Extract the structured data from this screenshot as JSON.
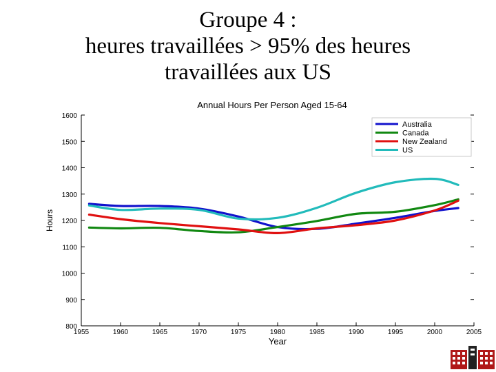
{
  "slide": {
    "title_lines": [
      "Groupe 4 :",
      "heures travaillées > 95% des heures",
      "travaillées aux US"
    ]
  },
  "chart_data": {
    "type": "line",
    "title": "Annual Hours Per Person Aged 15-64",
    "xlabel": "Year",
    "ylabel": "Hours",
    "xlim": [
      1955,
      2005
    ],
    "ylim": [
      800,
      1600
    ],
    "xticks": [
      1955,
      1960,
      1965,
      1970,
      1975,
      1980,
      1985,
      1990,
      1995,
      2000,
      2005
    ],
    "yticks": [
      800,
      900,
      1000,
      1100,
      1200,
      1300,
      1400,
      1500,
      1600
    ],
    "grid": false,
    "legend": "top-right",
    "x": [
      1956,
      1960,
      1965,
      1970,
      1975,
      1980,
      1985,
      1990,
      1995,
      2000,
      2003
    ],
    "series": [
      {
        "name": "Australia",
        "color": "#1111cc",
        "values": [
          1263,
          1255,
          1255,
          1245,
          1215,
          1175,
          1168,
          1188,
          1210,
          1236,
          1247
        ]
      },
      {
        "name": "Canada",
        "color": "#118811",
        "values": [
          1173,
          1170,
          1172,
          1160,
          1155,
          1175,
          1198,
          1225,
          1233,
          1258,
          1280
        ]
      },
      {
        "name": "New Zealand",
        "color": "#e01010",
        "values": [
          1222,
          1205,
          1190,
          1178,
          1166,
          1152,
          1170,
          1182,
          1200,
          1238,
          1275
        ]
      },
      {
        "name": "US",
        "color": "#22bbbb",
        "values": [
          1257,
          1240,
          1245,
          1240,
          1207,
          1210,
          1248,
          1305,
          1345,
          1358,
          1335
        ]
      }
    ]
  }
}
